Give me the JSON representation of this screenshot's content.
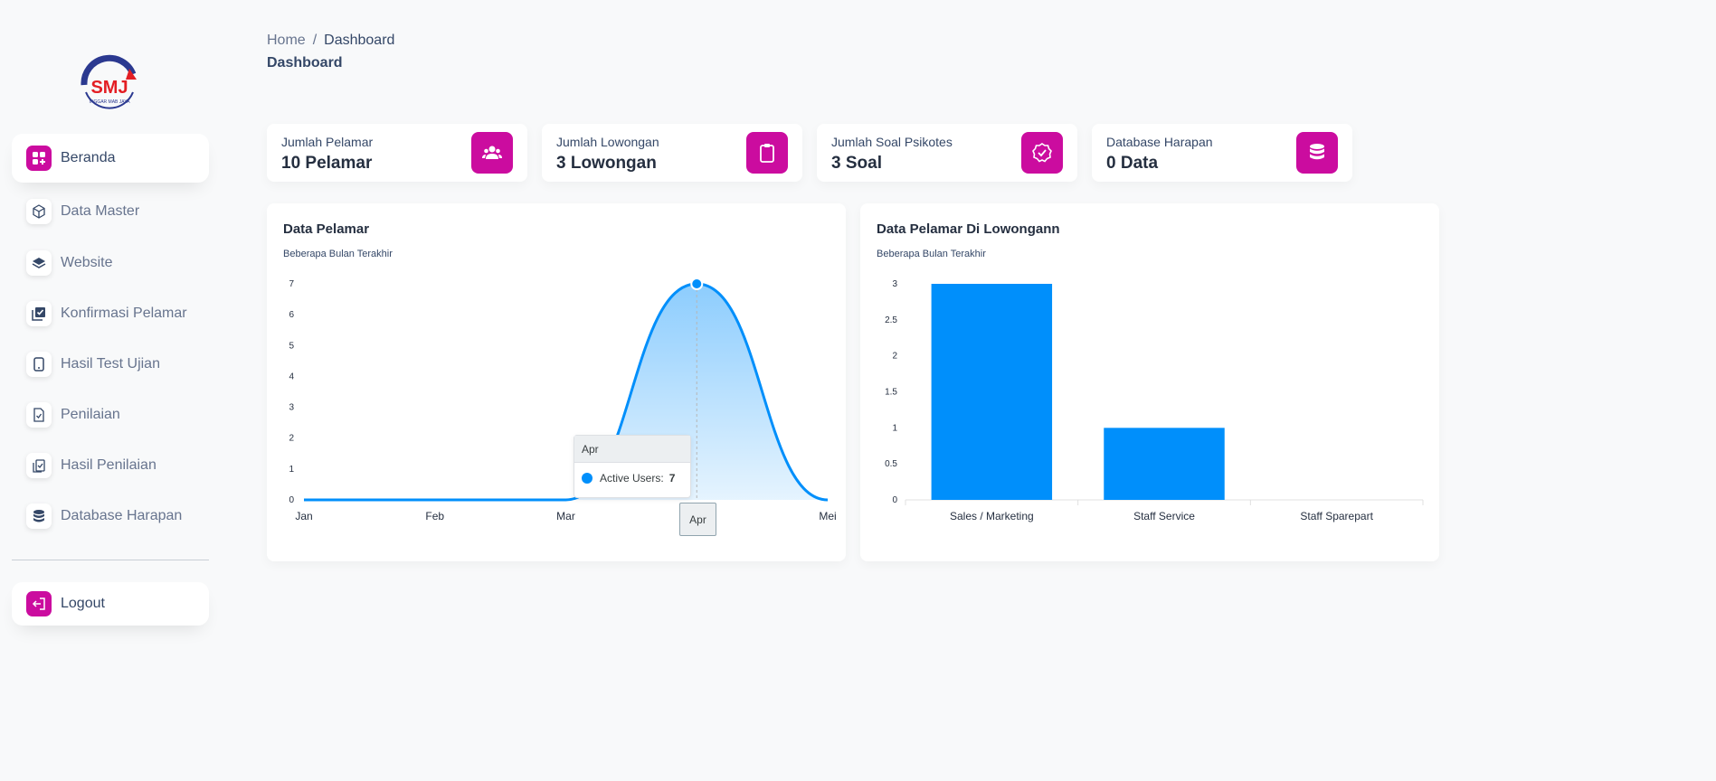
{
  "logo": {
    "text": "SMJ",
    "subtext": "INGGAR MAB JAYA",
    "icon": "company-logo"
  },
  "sidebar": {
    "items": [
      {
        "label": "Beranda",
        "icon": "dashboard-icon",
        "active": true
      },
      {
        "label": "Data Master",
        "icon": "box-icon"
      },
      {
        "label": "Website",
        "icon": "layers-icon"
      },
      {
        "label": "Konfirmasi Pelamar",
        "icon": "checkbox-stack-icon"
      },
      {
        "label": "Hasil Test Ujian",
        "icon": "tablet-icon"
      },
      {
        "label": "Penilaian",
        "icon": "file-check-icon"
      },
      {
        "label": "Hasil Penilaian",
        "icon": "clipboard-check-icon"
      },
      {
        "label": "Database Harapan",
        "icon": "database-icon"
      }
    ],
    "logout": {
      "label": "Logout",
      "icon": "logout-icon"
    }
  },
  "breadcrumb": {
    "home": "Home",
    "separator": "/",
    "current": "Dashboard"
  },
  "page_title": "Dashboard",
  "stats": [
    {
      "label": "Jumlah Pelamar",
      "value": "10 Pelamar",
      "icon": "users-icon"
    },
    {
      "label": "Jumlah Lowongan",
      "value": "3 Lowongan",
      "icon": "clipboard-icon"
    },
    {
      "label": "Jumlah Soal Psikotes",
      "value": "3 Soal",
      "icon": "badge-check-icon"
    },
    {
      "label": "Database Harapan",
      "value": "0 Data",
      "icon": "database-icon"
    }
  ],
  "accent_color": "#cb0c9f",
  "chart_color": "#008ffb",
  "chart_data": [
    {
      "type": "area",
      "title": "Data Pelamar",
      "subtitle": "Beberapa Bulan Terakhir",
      "categories": [
        "Jan",
        "Feb",
        "Mar",
        "Apr",
        "Mei"
      ],
      "series": [
        {
          "name": "Active Users",
          "values": [
            0,
            0,
            0,
            7,
            0
          ]
        }
      ],
      "ylim": [
        0,
        7
      ],
      "yticks": [
        0,
        1,
        2,
        3,
        4,
        5,
        6,
        7
      ],
      "grid": false,
      "tooltip": {
        "category": "Apr",
        "series": "Active Users:",
        "value": "7"
      }
    },
    {
      "type": "bar",
      "title": "Data Pelamar Di Lowongann",
      "subtitle": "Beberapa Bulan Terakhir",
      "categories": [
        "Sales / Marketing",
        "Staff Service",
        "Staff Sparepart"
      ],
      "values": [
        3,
        1,
        0
      ],
      "ylim": [
        0,
        3
      ],
      "yticks": [
        "0",
        "0.5",
        "1",
        "1.5",
        "2",
        "2.5",
        "3"
      ],
      "grid": false
    }
  ]
}
